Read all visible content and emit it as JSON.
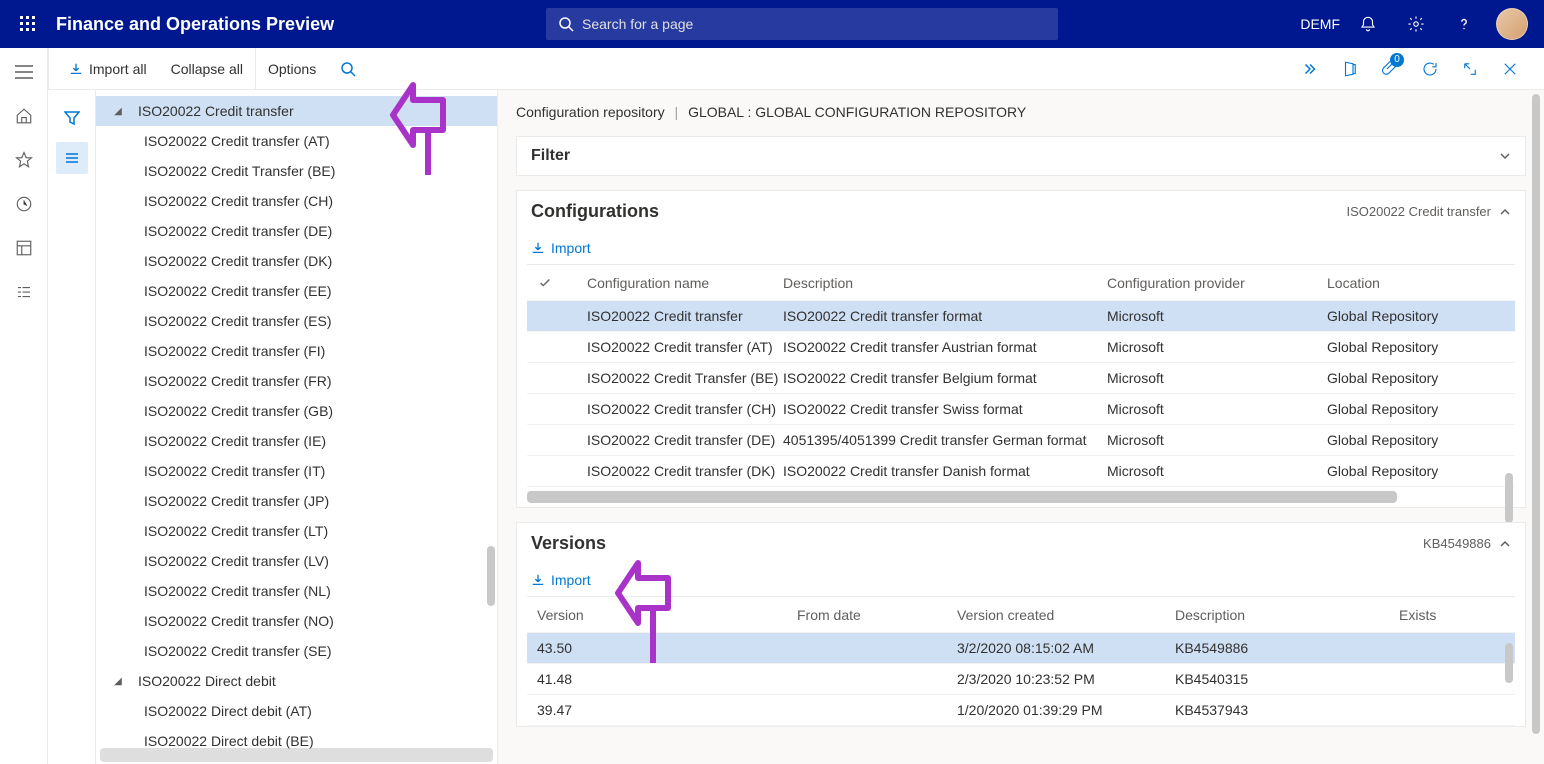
{
  "header": {
    "app_title": "Finance and Operations Preview",
    "search_placeholder": "Search for a page",
    "company": "DEMF"
  },
  "actionbar": {
    "import_all": "Import all",
    "collapse_all": "Collapse all",
    "options": "Options",
    "badge_count": "0"
  },
  "tree": {
    "items": [
      {
        "label": "ISO20022 Credit transfer",
        "level": 0,
        "expanded": true,
        "selected": true
      },
      {
        "label": "ISO20022 Credit transfer (AT)",
        "level": 1
      },
      {
        "label": "ISO20022 Credit Transfer (BE)",
        "level": 1
      },
      {
        "label": "ISO20022 Credit transfer (CH)",
        "level": 1
      },
      {
        "label": "ISO20022 Credit transfer (DE)",
        "level": 1
      },
      {
        "label": "ISO20022 Credit transfer (DK)",
        "level": 1
      },
      {
        "label": "ISO20022 Credit transfer (EE)",
        "level": 1
      },
      {
        "label": "ISO20022 Credit transfer (ES)",
        "level": 1
      },
      {
        "label": "ISO20022 Credit transfer (FI)",
        "level": 1
      },
      {
        "label": "ISO20022 Credit transfer (FR)",
        "level": 1
      },
      {
        "label": "ISO20022 Credit transfer (GB)",
        "level": 1
      },
      {
        "label": "ISO20022 Credit transfer (IE)",
        "level": 1
      },
      {
        "label": "ISO20022 Credit transfer (IT)",
        "level": 1
      },
      {
        "label": "ISO20022 Credit transfer (JP)",
        "level": 1
      },
      {
        "label": "ISO20022 Credit transfer (LT)",
        "level": 1
      },
      {
        "label": "ISO20022 Credit transfer (LV)",
        "level": 1
      },
      {
        "label": "ISO20022 Credit transfer (NL)",
        "level": 1
      },
      {
        "label": "ISO20022 Credit transfer (NO)",
        "level": 1
      },
      {
        "label": "ISO20022 Credit transfer (SE)",
        "level": 1
      },
      {
        "label": "ISO20022 Direct debit",
        "level": 0,
        "expanded": true
      },
      {
        "label": "ISO20022 Direct debit (AT)",
        "level": 1
      },
      {
        "label": "ISO20022 Direct debit (BE)",
        "level": 1
      }
    ]
  },
  "breadcrumb": {
    "part1": "Configuration repository",
    "part2": "GLOBAL : GLOBAL CONFIGURATION REPOSITORY"
  },
  "filter_card": {
    "title": "Filter"
  },
  "config_card": {
    "title": "Configurations",
    "subtitle": "ISO20022 Credit transfer",
    "import": "Import",
    "columns": [
      "Configuration name",
      "Description",
      "Configuration provider",
      "Location"
    ],
    "rows": [
      {
        "name": "ISO20022 Credit transfer",
        "desc": "ISO20022 Credit transfer format",
        "prov": "Microsoft",
        "loc": "Global Repository",
        "selected": true
      },
      {
        "name": "ISO20022 Credit transfer (AT)",
        "desc": "ISO20022 Credit transfer Austrian format",
        "prov": "Microsoft",
        "loc": "Global Repository"
      },
      {
        "name": "ISO20022 Credit Transfer (BE)",
        "desc": "ISO20022 Credit transfer Belgium format",
        "prov": "Microsoft",
        "loc": "Global Repository"
      },
      {
        "name": "ISO20022 Credit transfer (CH)",
        "desc": "ISO20022 Credit transfer Swiss format",
        "prov": "Microsoft",
        "loc": "Global Repository"
      },
      {
        "name": "ISO20022 Credit transfer (DE)",
        "desc": "4051395/4051399 Credit transfer German format",
        "prov": "Microsoft",
        "loc": "Global Repository"
      },
      {
        "name": "ISO20022 Credit transfer (DK)",
        "desc": "ISO20022 Credit transfer Danish format",
        "prov": "Microsoft",
        "loc": "Global Repository"
      }
    ]
  },
  "versions_card": {
    "title": "Versions",
    "subtitle": "KB4549886",
    "import": "Import",
    "columns": [
      "Version",
      "From date",
      "Version created",
      "Description",
      "Exists"
    ],
    "rows": [
      {
        "ver": "43.50",
        "created": "3/2/2020 08:15:02 AM",
        "desc": "KB4549886",
        "selected": true
      },
      {
        "ver": "41.48",
        "created": "2/3/2020 10:23:52 PM",
        "desc": "KB4540315"
      },
      {
        "ver": "39.47",
        "created": "1/20/2020 01:39:29 PM",
        "desc": "KB4537943"
      }
    ]
  },
  "colors": {
    "brand": "#00188f",
    "link": "#0078d4",
    "selection": "#cfe0f5",
    "annotation": "#a933c9"
  }
}
